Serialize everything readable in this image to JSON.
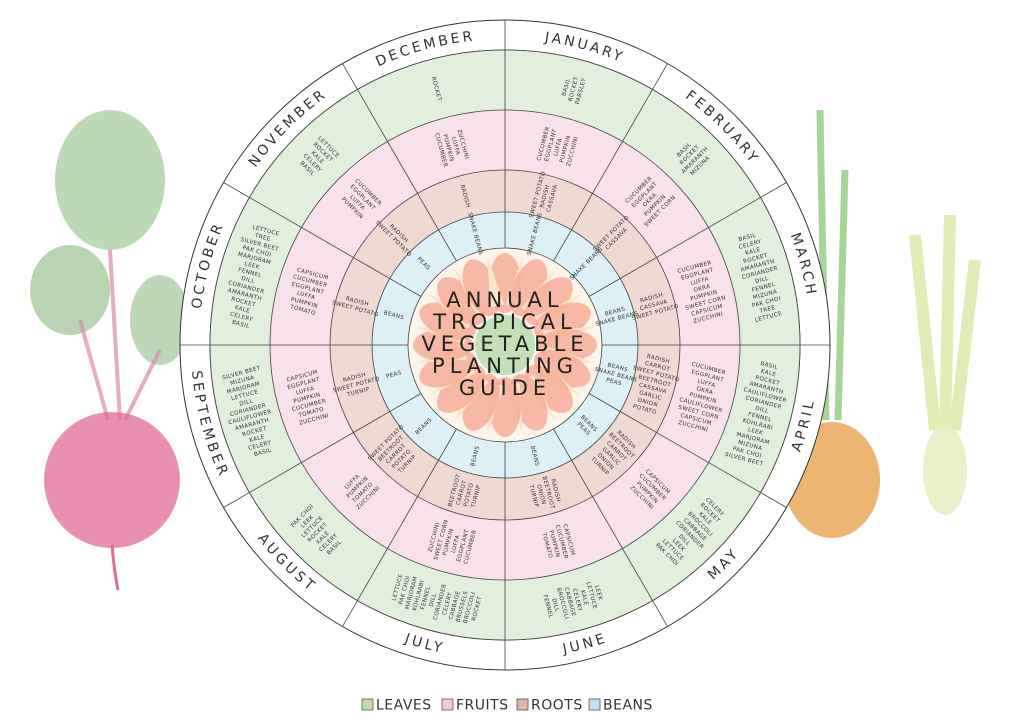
{
  "title": {
    "lines": [
      "ANNUAL",
      "TROPICAL",
      "VEGETABLE",
      "PLANTING",
      "GUIDE"
    ]
  },
  "months": [
    {
      "name": "JANUARY",
      "leaves": [
        "BASIL",
        "ROCKET",
        "PARSLEY"
      ],
      "fruits": [
        "CUCUMBER",
        "EGGPLANT",
        "LUFFA",
        "PUMPKIN",
        "ZUCCHINI"
      ],
      "roots": [
        "SWEET POTATO",
        "RADISH",
        "CASSAVA"
      ],
      "beans": [
        "SNAKE BEANS"
      ]
    },
    {
      "name": "FEBRUARY",
      "leaves": [
        "BASIL",
        "ROCKET",
        "AMARANTH",
        "MIZUNA"
      ],
      "fruits": [
        "CUCUMBER",
        "EGGPLANT",
        "OKRA",
        "PUMPKIN",
        "SWEET CORN"
      ],
      "roots": [
        "SWEET POTATO",
        "CASSAVA"
      ],
      "beans": [
        "SNAKE BEANS"
      ]
    },
    {
      "name": "MARCH",
      "leaves": [
        "BASIL",
        "CELERY",
        "KALE",
        "ROCKET",
        "AMARANTH",
        "CORIANDER",
        "DILL",
        "FENNEL",
        "MIZUNA",
        "PAK CHOI",
        "TREE",
        "LETTUCE"
      ],
      "fruits": [
        "CUCUMBER",
        "EGGPLANT",
        "LUFFA",
        "OKRA",
        "PUMPKIN",
        "SWEET CORN",
        "CAPSICUM",
        "ZUCCHINI"
      ],
      "roots": [
        "RADISH",
        "CASSAVA",
        "SWEET POTATO"
      ],
      "beans": [
        "BEANS",
        "SNAKE BEANS"
      ]
    },
    {
      "name": "APRIL",
      "leaves": [
        "BASIL",
        "KALE",
        "ROCKET",
        "AMARANTH",
        "CAULIFLOWER",
        "CORIANDER",
        "DILL",
        "FENNEL",
        "KOHLRABI",
        "LEEK",
        "MARJORAM",
        "MIZUNA",
        "PAK CHOI",
        "SILVER BEET"
      ],
      "fruits": [
        "CUCUMBER",
        "EGGPLANT",
        "LUFFA",
        "OKRA",
        "PUMPKIN",
        "CAULIFLOWER",
        "SWEET CORN",
        "CAPSICUM",
        "ZUCCHINI"
      ],
      "roots": [
        "RADISH",
        "CARROT",
        "SWEET POTATO",
        "BEETROOT",
        "CASSAVA",
        "GARLIC",
        "ONION",
        "POTATO"
      ],
      "beans": [
        "BEANS",
        "SNAKE BEANS",
        "PEAS"
      ]
    },
    {
      "name": "MAY",
      "leaves": [
        "CELERY",
        "ROCKET",
        "KALE",
        "BROCCOLI",
        "CABBAGE",
        "CORIANDER",
        "DILL",
        "LEEK",
        "LETTUCE",
        "PAK CHOI"
      ],
      "fruits": [
        "CAPSICUM",
        "CUCUMBER",
        "PUMPKIN",
        "ZUCCHINI"
      ],
      "roots": [
        "RADISH",
        "BEETROOT",
        "CARROT",
        "GARLIC",
        "ONION",
        "TURNIP"
      ],
      "beans": [
        "BEANS",
        "PEAS"
      ]
    },
    {
      "name": "JUNE",
      "leaves": [
        "LEEK",
        "LETTUCE",
        "KALE",
        "CELERY",
        "CABBAGE",
        "BROCCOLI",
        "DILL",
        "FENNEL"
      ],
      "fruits": [
        "CAPSICUM",
        "CUCUMBER",
        "PUMPKIN",
        "TOMATO"
      ],
      "roots": [
        "RADISH",
        "BEETROOT",
        "ONION",
        "TURNIP"
      ],
      "beans": [
        "BEANS"
      ]
    },
    {
      "name": "JULY",
      "leaves": [
        "ROCKET",
        "BROCCOLI",
        "BRUSSELS",
        "CABBAGE",
        "CELERY",
        "CORIANDER",
        "DILL",
        "FENNEL",
        "KOHLRABI",
        "MARJORAM",
        "PAK CHOI",
        "LETTUCE"
      ],
      "fruits": [
        "CUCUMBER",
        "EGGPLANT",
        "LUFFA",
        "PUMPKIN",
        "SWEET CORN",
        "ZUCCHINI"
      ],
      "roots": [
        "TURNIP",
        "POTATO",
        "CARROT",
        "BEETROOT"
      ],
      "beans": [
        "BEANS"
      ]
    },
    {
      "name": "AUGUST",
      "leaves": [
        "BASIL",
        "CELERY",
        "KALE",
        "ROCKET",
        "LETTUCE",
        "LEEK",
        "PAK CHOI"
      ],
      "fruits": [
        "ZUCCHINI",
        "TOMATO",
        "PUMPKIN",
        "LUFFA"
      ],
      "roots": [
        "TURNIP",
        "POTATO",
        "CARROT",
        "BEETROOT",
        "SWEET POTATO"
      ],
      "beans": [
        "BEANS"
      ]
    },
    {
      "name": "SEPTEMBER",
      "leaves": [
        "BASIL",
        "CELERY",
        "KALE",
        "ROCKET",
        "AMARANTH",
        "CAULIFLOWER",
        "CORIANDER",
        "DILL",
        "LETTUCE",
        "MARJORAM",
        "MIZUNA",
        "SILVER BEET"
      ],
      "fruits": [
        "ZUCCHINI",
        "TOMATO",
        "CUCUMBER",
        "PUMPKIN",
        "LUFFA",
        "EGGPLANT",
        "CAPSICUM"
      ],
      "roots": [
        "TURNIP",
        "SWEET POTATO",
        "RADISH"
      ],
      "beans": [
        "PEAS"
      ]
    },
    {
      "name": "OCTOBER",
      "leaves": [
        "BASIL",
        "CELERY",
        "KALE",
        "ROCKET",
        "AMARANTH",
        "CORIANDER",
        "DILL",
        "FENNEL",
        "LEEK",
        "MARJORAM",
        "PAK CHOI",
        "SILVER BEET",
        "TREE",
        "LETTUCE"
      ],
      "fruits": [
        "TOMATO",
        "PUMPKIN",
        "LUFFA",
        "EGGPLANT",
        "CUCUMBER",
        "CAPSICUM"
      ],
      "roots": [
        "SWEET POTATO",
        "RADISH"
      ],
      "beans": [
        "BEANS"
      ]
    },
    {
      "name": "NOVEMBER",
      "leaves": [
        "BASIL",
        "CELERY",
        "KALE",
        "ROCKET",
        "LETTUCE"
      ],
      "fruits": [
        "PUMPKIN",
        "LUFFA",
        "EGGPLANT",
        "CUCUMBER"
      ],
      "roots": [
        "SWEET POTATO",
        "RADISH"
      ],
      "beans": [
        "PEAS"
      ]
    },
    {
      "name": "DECEMBER",
      "leaves": [
        "ROCKET"
      ],
      "fruits": [
        "CUCUMBER",
        "PUMPKIN",
        "LUFFA",
        "ZUCCHINI"
      ],
      "roots": [
        "RADISH"
      ],
      "beans": [
        "SNAKE BEANS"
      ]
    }
  ],
  "legend": [
    "LEAVES",
    "FRUITS",
    "ROOTS",
    "BEANS"
  ]
}
